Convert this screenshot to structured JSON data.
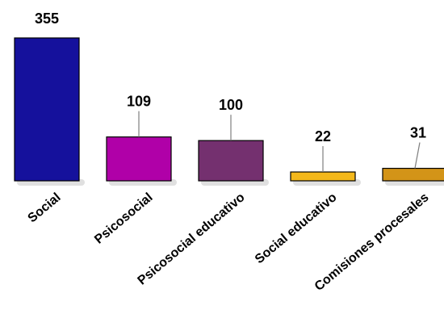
{
  "chart_data": {
    "type": "bar",
    "categories": [
      "Social",
      "Psicosocial",
      "Psicosocial educativo",
      "Social educativo",
      "Comisiones procesales"
    ],
    "values": [
      355,
      109,
      100,
      22,
      31
    ],
    "colors": [
      "#15119c",
      "#b000a8",
      "#74306f",
      "#f3b81b",
      "#d39418"
    ],
    "title": "",
    "xlabel": "",
    "ylabel": "",
    "ylim": [
      0,
      355
    ],
    "grid": false,
    "legend": "none"
  }
}
